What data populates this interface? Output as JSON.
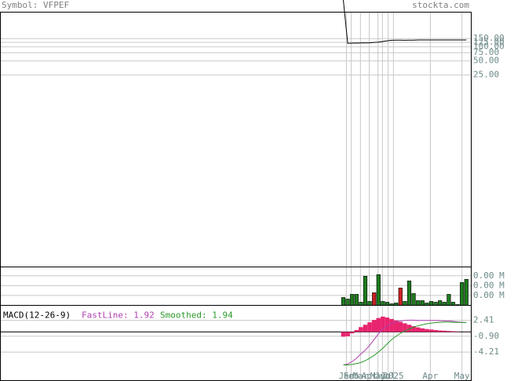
{
  "header": {
    "symbol": "Symbol: VFPEF",
    "site": "stockta.com"
  },
  "chart_data": [
    {
      "type": "line",
      "log_scale": true,
      "grid": true,
      "xlim": [
        -78.04,
        29.11
      ],
      "ylim": [
        0.002,
        550
      ],
      "yticks": [
        {
          "value": 150,
          "label": "150.00"
        },
        {
          "value": 125,
          "label": "125.00"
        },
        {
          "value": 100,
          "label": "100.00"
        },
        {
          "value": 75,
          "label": "75.00"
        },
        {
          "value": 50,
          "label": "50.00"
        },
        {
          "value": 25,
          "label": "25.00"
        }
      ],
      "xticks": [
        {
          "value": 0.7,
          "label": "Jan"
        },
        {
          "value": 1.8,
          "label": "Feb"
        },
        {
          "value": 3.9,
          "label": "Mar"
        },
        {
          "value": 5.9,
          "label": "Apr"
        },
        {
          "value": 7.9,
          "label": "May"
        },
        {
          "value": 8.9,
          "label": "Jun"
        },
        {
          "value": 10.2,
          "label": "Jul"
        },
        {
          "value": 11.4,
          "label": "2025"
        },
        {
          "value": 19.8,
          "label": "Apr"
        },
        {
          "value": 27.0,
          "label": "May"
        }
      ],
      "series": [
        {
          "color": "#000000",
          "values": [
            1000,
            119,
            120,
            120,
            121,
            121,
            122,
            124,
            126,
            130,
            135,
            138,
            139,
            139,
            138,
            139,
            139,
            140,
            140,
            140,
            140,
            140,
            140,
            140,
            140,
            140,
            140,
            140,
            140
          ]
        }
      ]
    },
    {
      "type": "bar",
      "grid": true,
      "ylim": [
        0,
        3900
      ],
      "yticks": [
        {
          "value": 3000,
          "label": "0.00 M"
        },
        {
          "value": 2000,
          "label": "0.00 M"
        },
        {
          "value": 1000,
          "label": "0.00 M"
        }
      ],
      "values": [
        800,
        640,
        1120,
        1120,
        320,
        2960,
        400,
        1280,
        3120,
        400,
        320,
        160,
        240,
        1760,
        400,
        2480,
        1200,
        480,
        480,
        240,
        400,
        320,
        480,
        320,
        1120,
        320,
        80,
        2320,
        2640
      ],
      "colors": [
        "#1e7b1e",
        "#1e7b1e",
        "#1e7b1e",
        "#1e7b1e",
        "#1e7b1e",
        "#1e7b1e",
        "#1e7b1e",
        "#cc2222",
        "#1e7b1e",
        "#1e7b1e",
        "#1e7b1e",
        "#1e7b1e",
        "#1e7b1e",
        "#cc2222",
        "#1e7b1e",
        "#1e7b1e",
        "#1e7b1e",
        "#1e7b1e",
        "#1e7b1e",
        "#1e7b1e",
        "#1e7b1e",
        "#1e7b1e",
        "#1e7b1e",
        "#1e7b1e",
        "#1e7b1e",
        "#1e7b1e",
        "#1e7b1e",
        "#1e7b1e",
        "#1e7b1e"
      ]
    },
    {
      "type": "line",
      "title": "MACD(12-26-9)",
      "grid": true,
      "ylim": [
        -10.17,
        5.55
      ],
      "yticks": [
        {
          "value": 2.41,
          "label": "2.41"
        },
        {
          "value": -0.9,
          "label": "-0.90"
        },
        {
          "value": -4.21,
          "label": "-4.21"
        }
      ],
      "series": [
        {
          "type": "bar",
          "color": "#e8246e",
          "values": [
            -1.0,
            -0.9,
            -0.3,
            0.4,
            1.0,
            1.5,
            2.0,
            2.5,
            2.9,
            3.2,
            3.0,
            2.7,
            2.4,
            2.1,
            1.8,
            1.5,
            1.2,
            0.95,
            0.75,
            0.6,
            0.5,
            0.4,
            0.3,
            0.25,
            0.2,
            0.15,
            0.1,
            0.0,
            -0.02
          ]
        },
        {
          "name": "FastLine: 1.92",
          "color": "#b040b0",
          "values": [
            -6.9,
            -6.7,
            -6.2,
            -5.5,
            -4.6,
            -3.8,
            -2.8,
            -1.6,
            -0.4,
            0.6,
            1.3,
            1.8,
            2.1,
            2.3,
            2.4,
            2.45,
            2.45,
            2.4,
            2.4,
            2.4,
            2.4,
            2.4,
            2.35,
            2.3,
            2.3,
            2.2,
            2.1,
            2.0,
            1.92
          ]
        },
        {
          "name": "Smoothed: 1.94",
          "color": "#2a9a2a",
          "values": [
            -6.9,
            -6.9,
            -6.8,
            -6.6,
            -6.4,
            -6.0,
            -5.5,
            -4.9,
            -4.2,
            -3.4,
            -2.5,
            -1.6,
            -0.9,
            -0.3,
            0.2,
            0.6,
            1.0,
            1.3,
            1.5,
            1.7,
            1.85,
            1.95,
            2.0,
            2.05,
            2.05,
            2.0,
            2.0,
            1.97,
            1.94
          ]
        }
      ]
    }
  ]
}
